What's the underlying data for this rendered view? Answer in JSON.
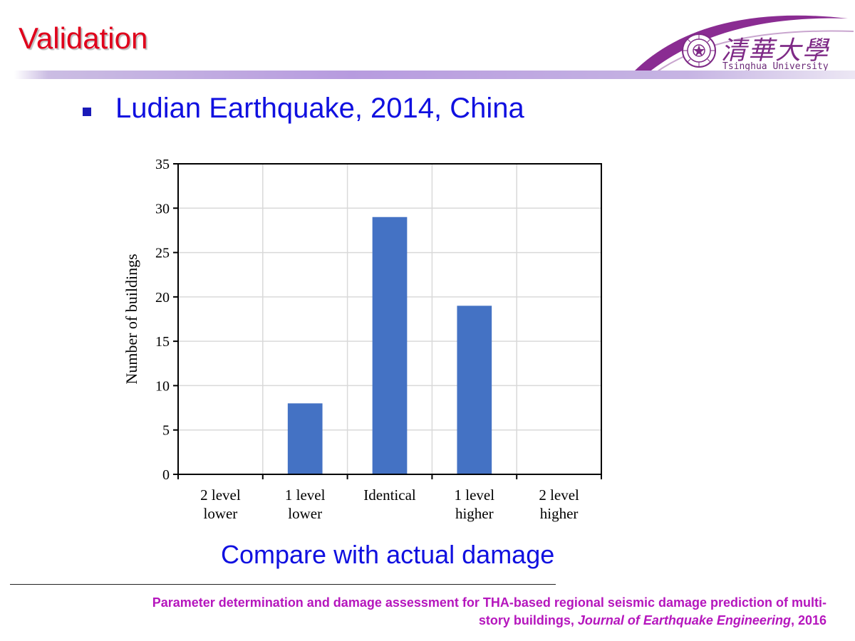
{
  "slide": {
    "title": "Validation",
    "bullet": "Ludian Earthquake, 2014, China",
    "caption": "Compare with actual damage"
  },
  "logo": {
    "chinese_name": "清華大學",
    "english_name": "Tsinghua University",
    "seal_text": "清华大学 1911",
    "icon": "tsinghua-seal-icon"
  },
  "reference": {
    "line1": "Parameter determination and damage assessment for THA-based regional seismic damage prediction of multi-",
    "line2_prefix": "story buildings, ",
    "journal": "Journal of Earthquake Engineering",
    "line2_suffix": ", 2016"
  },
  "colors": {
    "title": "#e0001b",
    "accent_blue": "#1010e0",
    "bar": "#4472c4",
    "reference": "#b516bd",
    "logo_purple": "#7e2a86"
  },
  "chart_data": {
    "type": "bar",
    "title": "",
    "xlabel": "",
    "ylabel": "Number of buildings",
    "ylim": [
      0,
      35
    ],
    "yticks": [
      0,
      5,
      10,
      15,
      20,
      25,
      30,
      35
    ],
    "grid": true,
    "categories": [
      [
        "2 level",
        "lower"
      ],
      [
        "1 level",
        "lower"
      ],
      [
        "Identical"
      ],
      [
        "1 level",
        "higher"
      ],
      [
        "2 level",
        "higher"
      ]
    ],
    "values": [
      0,
      8,
      29,
      19,
      0
    ]
  }
}
